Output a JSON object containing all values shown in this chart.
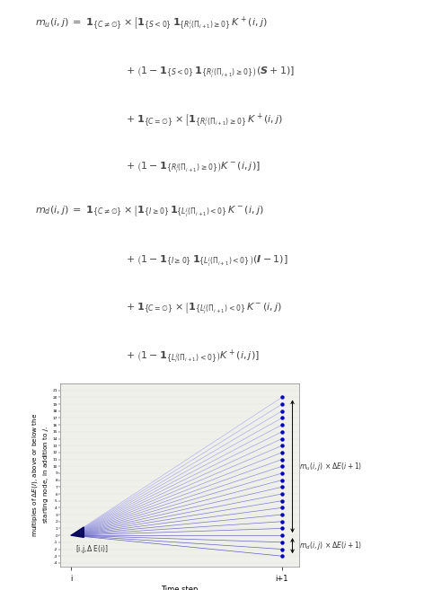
{
  "fig_width": 4.82,
  "fig_height": 6.57,
  "dpi": 100,
  "m_u": 20,
  "m_d": 3,
  "dot_color": "#0000bb",
  "background_color": "#f0f0eb",
  "ylabel": "multiples of $\\Delta E(i)$, above or below the\nstarting node, in addition to $j$.",
  "xlabel": "Time step",
  "label_start": "[i,j,$\\Delta$ E(i)]",
  "label_mu": "$m_u(i,j)\\;\\times\\Delta E(i+1)$",
  "label_md": "$m_d(i,j)\\;\\times\\Delta E(i+1)$",
  "xtick_labels": [
    "i",
    "i+1"
  ],
  "formula_mu_line1": "$m_u(i,j)\\;=\\;\\mathbf{1}_{\\{C\\neq\\emptyset\\}}\\times\\left[\\mathbf{1}_{\\{S<0\\}}\\,\\mathbf{1}_{\\{R_i^j(\\Pi_{i+1})\\geq 0\\}}\\,K^+(i,j)\\right.$",
  "formula_mu_line2": "$\\qquad\\quad+\\left(1-\\mathbf{1}_{\\{S<0\\}}\\,\\mathbf{1}_{\\{R_i^j(\\Pi_{i+1})\\geq 0\\}}\\right)(\\boldsymbol{S}+1)\\left.\\right]$",
  "formula_mu_line3": "$\\qquad\\quad+\\mathbf{1}_{\\{C=\\emptyset\\}}\\times\\left[\\mathbf{1}_{\\{R_i^j(\\Pi_{i+1})\\geq 0\\}}\\,K^+(i,j)\\right.$",
  "formula_mu_line4": "$\\qquad\\quad+\\left(1-\\mathbf{1}_{\\{R_i^j(\\Pi_{i+1})\\geq 0\\}}\\right)K^-(i,j)\\left.\\right]$",
  "formula_md_line1": "$m_d(i,j)\\;=\\;\\mathbf{1}_{\\{C\\neq\\emptyset\\}}\\times\\left[\\mathbf{1}_{\\{I\\geq 0\\}}\\,\\mathbf{1}_{\\{L_i^j(\\Pi_{i+1})<0\\}}\\,K^-(i,j)\\right.$",
  "formula_md_line2": "$\\qquad\\quad+\\left(1-\\mathbf{1}_{\\{I\\geq 0\\}}\\,\\mathbf{1}_{\\{L_i^j(\\Pi_{i+1})<0\\}}\\right)(\\boldsymbol{I}-1)\\left.\\right]$",
  "formula_md_line3": "$\\qquad\\quad+\\mathbf{1}_{\\{C=\\emptyset\\}}\\times\\left[\\mathbf{1}_{\\{L_i^j(\\Pi_{i+1})<0\\}}\\,K^-(i,j)\\right.$",
  "formula_md_line4": "$\\qquad\\quad+\\left(1-\\mathbf{1}_{\\{L_i^j(\\Pi_{i+1})<0\\}}\\right)K^+(i,j)\\left.\\right]$"
}
